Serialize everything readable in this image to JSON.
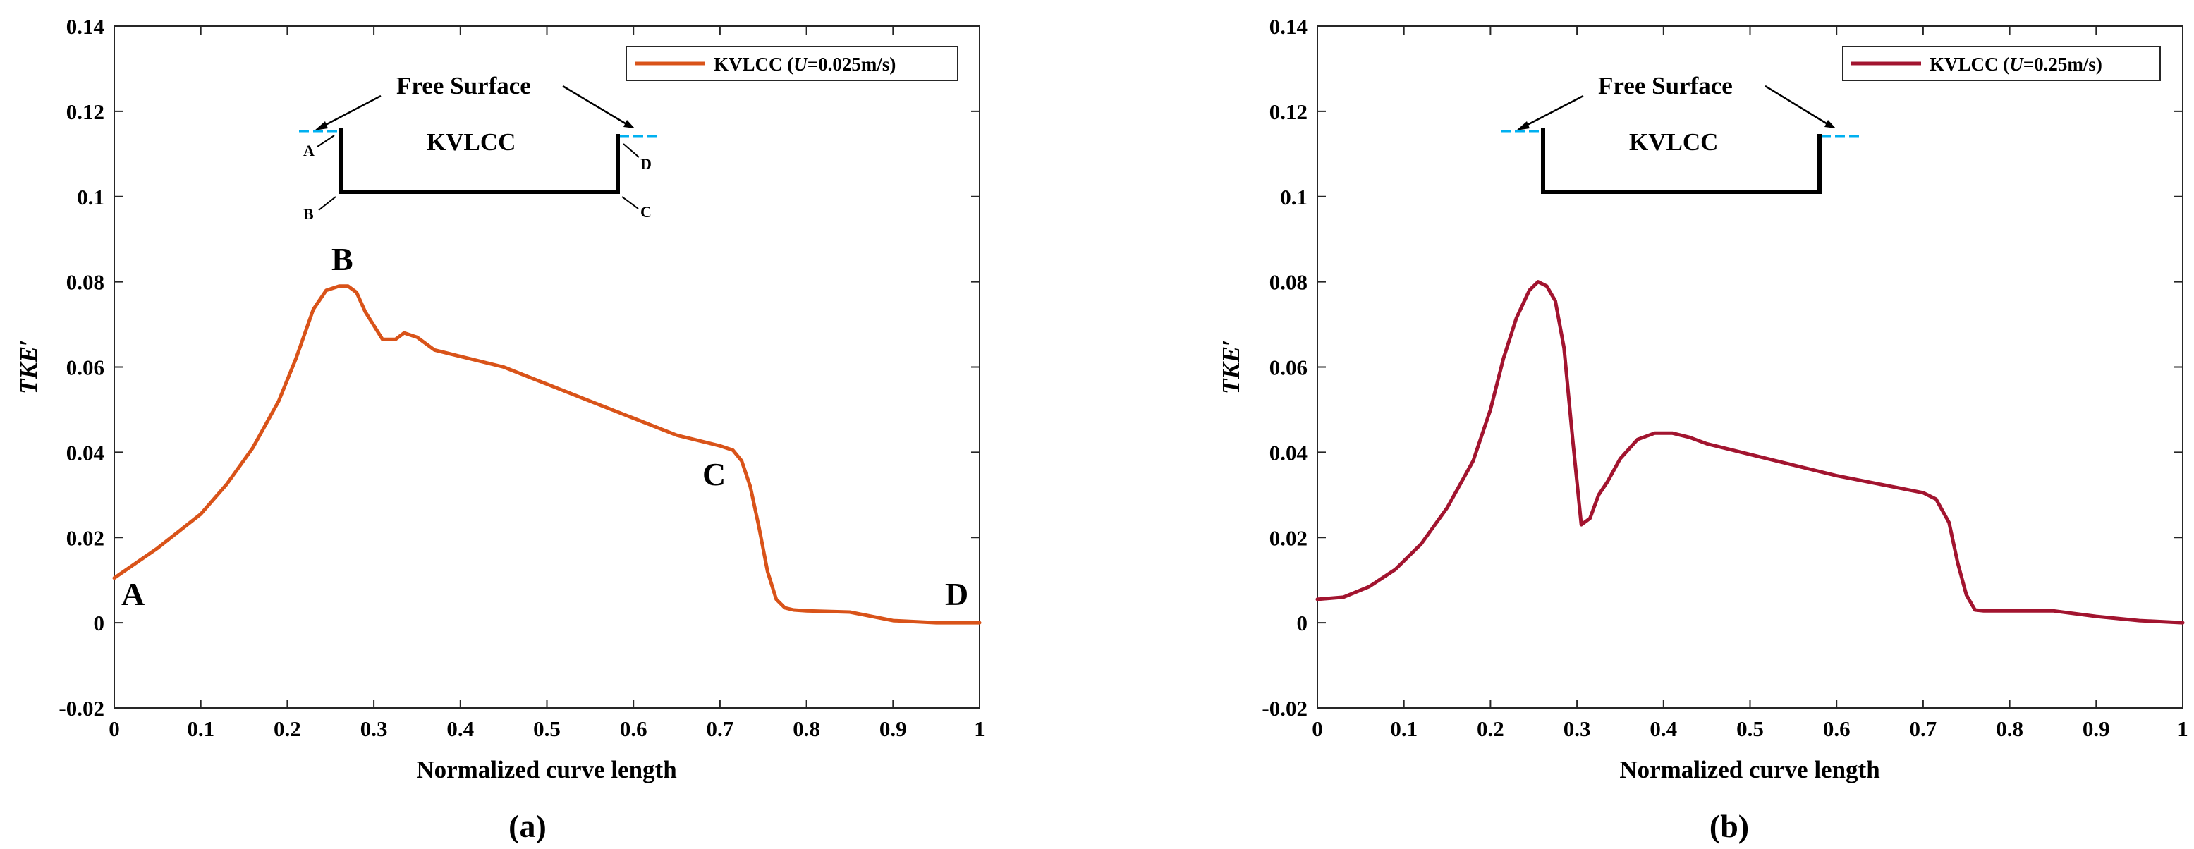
{
  "chart_data": [
    {
      "type": "line",
      "panel_label": "(a)",
      "xlabel": "Normalized curve length",
      "ylabel": "TKE",
      "ylabel_suffix": "′",
      "xlim": [
        0,
        1
      ],
      "ylim": [
        -0.02,
        0.14
      ],
      "x_ticks": [
        "0",
        "0.1",
        "0.2",
        "0.3",
        "0.4",
        "0.5",
        "0.6",
        "0.7",
        "0.8",
        "0.9",
        "1"
      ],
      "y_ticks": [
        "-0.02",
        "0",
        "0.02",
        "0.04",
        "0.06",
        "0.08",
        "0.1",
        "0.12",
        "0.14"
      ],
      "legend": {
        "prefix": "KVLCC (",
        "var": "U",
        "suffix": "=0.025m/s)"
      },
      "color": "#d95319",
      "series": [
        {
          "name": "KVLCC (U=0.025m/s)",
          "x": [
            0,
            0.05,
            0.1,
            0.13,
            0.16,
            0.19,
            0.21,
            0.23,
            0.245,
            0.26,
            0.27,
            0.28,
            0.29,
            0.31,
            0.325,
            0.335,
            0.35,
            0.37,
            0.4,
            0.45,
            0.5,
            0.55,
            0.6,
            0.65,
            0.7,
            0.715,
            0.725,
            0.735,
            0.745,
            0.755,
            0.765,
            0.775,
            0.785,
            0.8,
            0.85,
            0.9,
            0.95,
            1.0
          ],
          "y": [
            0.0105,
            0.0175,
            0.0255,
            0.0325,
            0.041,
            0.052,
            0.062,
            0.0735,
            0.078,
            0.079,
            0.079,
            0.0775,
            0.073,
            0.0665,
            0.0665,
            0.068,
            0.067,
            0.064,
            0.0625,
            0.06,
            0.056,
            0.052,
            0.048,
            0.044,
            0.0415,
            0.0405,
            0.038,
            0.032,
            0.0225,
            0.012,
            0.0055,
            0.0035,
            0.003,
            0.0028,
            0.0025,
            0.0005,
            0,
            0
          ]
        }
      ],
      "point_labels": [
        "A",
        "B",
        "C",
        "D"
      ],
      "inset": {
        "title": "Free Surface",
        "body": "KVLCC",
        "corner_labels": [
          "A",
          "B",
          "C",
          "D"
        ]
      }
    },
    {
      "type": "line",
      "panel_label": "(b)",
      "xlabel": "Normalized curve length",
      "ylabel": "TKE",
      "ylabel_suffix": "′",
      "xlim": [
        0,
        1
      ],
      "ylim": [
        -0.02,
        0.14
      ],
      "x_ticks": [
        "0",
        "0.1",
        "0.2",
        "0.3",
        "0.4",
        "0.5",
        "0.6",
        "0.7",
        "0.8",
        "0.9",
        "1"
      ],
      "y_ticks": [
        "-0.02",
        "0",
        "0.02",
        "0.04",
        "0.06",
        "0.08",
        "0.1",
        "0.12",
        "0.14"
      ],
      "legend": {
        "prefix": "KVLCC (",
        "var": "U",
        "suffix": "=0.25m/s)"
      },
      "color": "#a2142f",
      "series": [
        {
          "name": "KVLCC (U=0.25m/s)",
          "x": [
            0,
            0.03,
            0.06,
            0.09,
            0.12,
            0.15,
            0.18,
            0.2,
            0.215,
            0.23,
            0.245,
            0.255,
            0.265,
            0.275,
            0.285,
            0.295,
            0.305,
            0.315,
            0.325,
            0.335,
            0.35,
            0.37,
            0.39,
            0.41,
            0.43,
            0.45,
            0.5,
            0.55,
            0.6,
            0.65,
            0.7,
            0.715,
            0.73,
            0.74,
            0.75,
            0.76,
            0.77,
            0.8,
            0.85,
            0.9,
            0.95,
            1.0
          ],
          "y": [
            0.0055,
            0.006,
            0.0085,
            0.0125,
            0.0185,
            0.027,
            0.038,
            0.05,
            0.062,
            0.0715,
            0.078,
            0.08,
            0.079,
            0.0755,
            0.0645,
            0.043,
            0.023,
            0.0245,
            0.03,
            0.033,
            0.0385,
            0.043,
            0.0445,
            0.0445,
            0.0435,
            0.042,
            0.0395,
            0.037,
            0.0345,
            0.0325,
            0.0305,
            0.029,
            0.0235,
            0.014,
            0.0065,
            0.003,
            0.0028,
            0.0028,
            0.0028,
            0.0015,
            0.0005,
            0
          ]
        }
      ],
      "inset": {
        "title": "Free Surface",
        "body": "KVLCC"
      }
    }
  ]
}
